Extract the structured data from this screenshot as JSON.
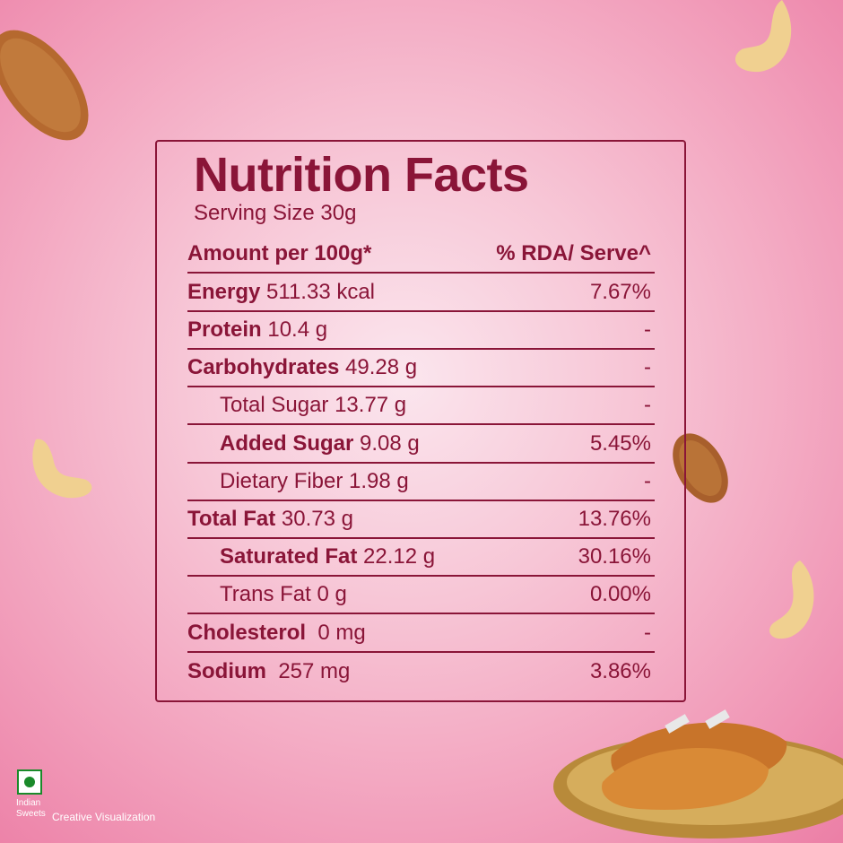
{
  "title": "Nutrition Facts",
  "serving": "Serving Size 30g",
  "header": {
    "left": "Amount per 100g*",
    "right": "% RDA/ Serve^"
  },
  "rows": [
    {
      "name": "Energy",
      "amount": " 511.33 kcal",
      "rda": "7.67%",
      "bold": true
    },
    {
      "name": "Protein",
      "amount": " 10.4 g",
      "rda": "-",
      "bold": true
    },
    {
      "name": "Carbohydrates",
      "amount": " 49.28 g",
      "rda": "-",
      "bold": true
    },
    {
      "name": "Total Sugar 13.77 g",
      "amount": "",
      "rda": "-",
      "bold": false
    },
    {
      "name": "Added Sugar",
      "amount": " 9.08 g",
      "rda": "5.45%",
      "bold": true
    },
    {
      "name": "Dietary Fiber 1.98 g",
      "amount": "",
      "rda": "-",
      "bold": false
    },
    {
      "name": "Total Fat",
      "amount": " 30.73 g",
      "rda": "13.76%",
      "bold": true
    },
    {
      "name": "Saturated Fat",
      "amount": " 22.12 g",
      "rda": "30.16%",
      "bold": true
    },
    {
      "name": "Trans Fat 0 g",
      "amount": "",
      "rda": "0.00%",
      "bold": false
    },
    {
      "name": "Cholesterol",
      "amount": "  0 mg",
      "rda": "-",
      "bold": true
    },
    {
      "name": "Sodium",
      "amount": "  257 mg",
      "rda": "3.86%",
      "bold": true
    }
  ],
  "footer": {
    "brand_line1": "Indian",
    "brand_line2": "Sweets",
    "note": "Creative Visualization"
  },
  "decor": {
    "almond_icon": "almond-icon",
    "cashew_icon": "cashew-icon",
    "gujiya_plate": "gujiya-plate-icon",
    "veg_mark": "veg-mark-icon"
  },
  "colors": {
    "accent": "#8a1538",
    "background": "#f7c6d6"
  }
}
